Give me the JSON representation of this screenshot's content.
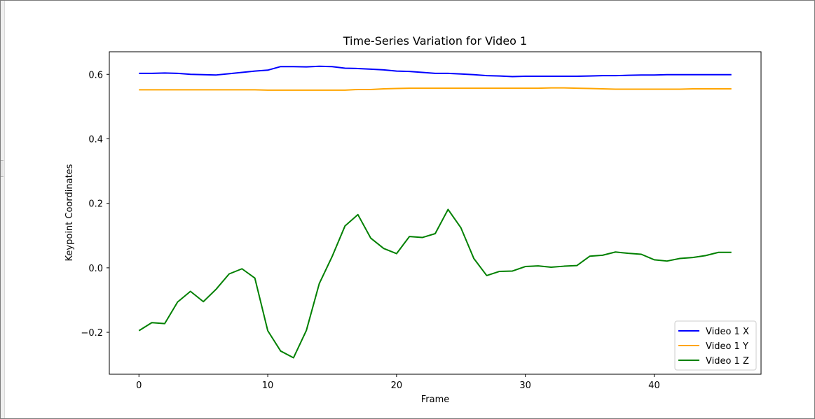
{
  "chart_data": {
    "type": "line",
    "title": "Time-Series Variation for Video 1",
    "xlabel": "Frame",
    "ylabel": "Keypoint Coordinates",
    "xlim": [
      -2.3,
      48.3
    ],
    "ylim": [
      -0.33,
      0.67
    ],
    "xticks": [
      0,
      10,
      20,
      30,
      40
    ],
    "yticks": [
      -0.2,
      0.0,
      0.2,
      0.4,
      0.6
    ],
    "ytick_labels": [
      "−0.2",
      "0.0",
      "0.2",
      "0.4",
      "0.6"
    ],
    "grid": false,
    "legend_position": "lower-right",
    "x": [
      0,
      1,
      2,
      3,
      4,
      5,
      6,
      7,
      8,
      9,
      10,
      11,
      12,
      13,
      14,
      15,
      16,
      17,
      18,
      19,
      20,
      21,
      22,
      23,
      24,
      25,
      26,
      27,
      28,
      29,
      30,
      31,
      32,
      33,
      34,
      35,
      36,
      37,
      38,
      39,
      40,
      41,
      42,
      43,
      44,
      45,
      46
    ],
    "series": [
      {
        "name": "Video 1 X",
        "color": "#0000ff",
        "values": [
          0.603,
          0.603,
          0.604,
          0.603,
          0.6,
          0.599,
          0.598,
          0.602,
          0.606,
          0.61,
          0.613,
          0.624,
          0.624,
          0.623,
          0.625,
          0.624,
          0.619,
          0.618,
          0.616,
          0.614,
          0.61,
          0.609,
          0.606,
          0.603,
          0.603,
          0.601,
          0.599,
          0.596,
          0.595,
          0.593,
          0.594,
          0.594,
          0.594,
          0.594,
          0.594,
          0.595,
          0.596,
          0.596,
          0.597,
          0.598,
          0.598,
          0.599,
          0.599,
          0.599,
          0.599,
          0.599,
          0.599
        ]
      },
      {
        "name": "Video 1 Y",
        "color": "#ffa500",
        "values": [
          0.552,
          0.552,
          0.552,
          0.552,
          0.552,
          0.552,
          0.552,
          0.552,
          0.552,
          0.552,
          0.551,
          0.551,
          0.551,
          0.551,
          0.551,
          0.551,
          0.551,
          0.553,
          0.553,
          0.555,
          0.556,
          0.557,
          0.557,
          0.557,
          0.557,
          0.557,
          0.557,
          0.557,
          0.557,
          0.557,
          0.557,
          0.557,
          0.558,
          0.558,
          0.557,
          0.556,
          0.555,
          0.554,
          0.554,
          0.554,
          0.554,
          0.554,
          0.554,
          0.555,
          0.555,
          0.555,
          0.555
        ]
      },
      {
        "name": "Video 1 Z",
        "color": "#008000",
        "values": [
          -0.195,
          -0.17,
          -0.173,
          -0.106,
          -0.073,
          -0.105,
          -0.066,
          -0.019,
          -0.003,
          -0.032,
          -0.195,
          -0.258,
          -0.279,
          -0.194,
          -0.049,
          0.035,
          0.13,
          0.165,
          0.092,
          0.06,
          0.044,
          0.097,
          0.094,
          0.106,
          0.181,
          0.124,
          0.029,
          -0.024,
          -0.011,
          -0.01,
          0.004,
          0.006,
          0.002,
          0.005,
          0.007,
          0.036,
          0.039,
          0.049,
          0.045,
          0.042,
          0.025,
          0.021,
          0.029,
          0.032,
          0.038,
          0.048,
          0.048
        ]
      }
    ]
  }
}
